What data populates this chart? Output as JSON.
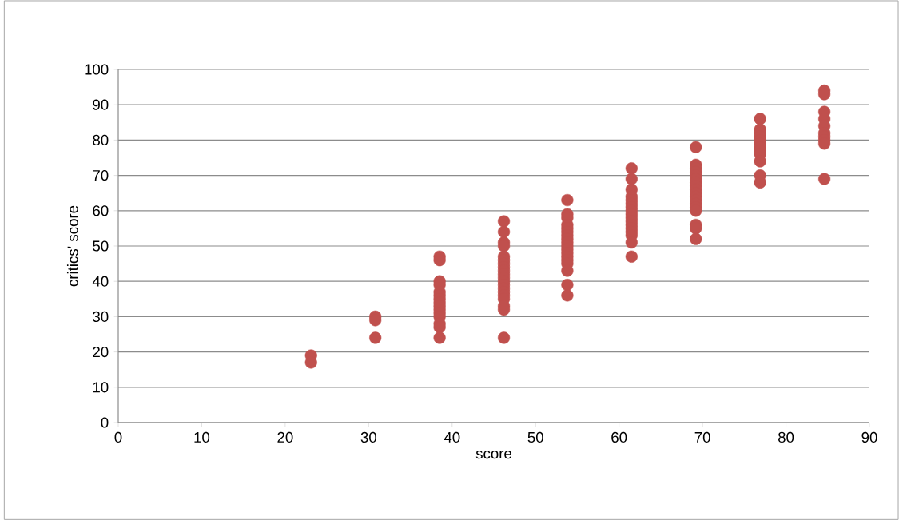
{
  "chart_data": {
    "type": "scatter",
    "xlabel": "score",
    "ylabel": "critics' score",
    "x": [
      23.1,
      23.1,
      30.8,
      30.8,
      30.8,
      38.5,
      38.5,
      38.5,
      38.5,
      38.5,
      38.5,
      38.5,
      38.5,
      38.5,
      38.5,
      38.5,
      38.5,
      38.5,
      38.5,
      38.5,
      46.2,
      46.2,
      46.2,
      46.2,
      46.2,
      46.2,
      46.2,
      46.2,
      46.2,
      46.2,
      46.2,
      46.2,
      46.2,
      46.2,
      46.2,
      46.2,
      46.2,
      46.2,
      46.2,
      46.2,
      53.8,
      53.8,
      53.8,
      53.8,
      53.8,
      53.8,
      53.8,
      53.8,
      53.8,
      53.8,
      53.8,
      53.8,
      53.8,
      53.8,
      53.8,
      53.8,
      53.8,
      53.8,
      61.5,
      61.5,
      61.5,
      61.5,
      61.5,
      61.5,
      61.5,
      61.5,
      61.5,
      61.5,
      61.5,
      61.5,
      61.5,
      61.5,
      61.5,
      61.5,
      61.5,
      69.2,
      69.2,
      69.2,
      69.2,
      69.2,
      69.2,
      69.2,
      69.2,
      69.2,
      69.2,
      69.2,
      69.2,
      69.2,
      69.2,
      69.2,
      69.2,
      69.2,
      69.2,
      76.9,
      76.9,
      76.9,
      76.9,
      76.9,
      76.9,
      76.9,
      76.9,
      76.9,
      76.9,
      76.9,
      76.9,
      84.6,
      84.6,
      84.6,
      84.6,
      84.6,
      84.6,
      84.6,
      84.6,
      84.6,
      84.6
    ],
    "values": [
      19,
      17,
      30,
      29,
      24,
      47,
      46,
      40,
      39,
      37,
      36,
      35,
      34,
      33,
      32,
      31,
      30,
      28,
      27,
      24,
      57,
      54,
      51,
      50,
      47,
      46,
      45,
      44,
      43,
      42,
      41,
      40,
      39,
      38,
      37,
      36,
      35,
      33,
      32,
      24,
      63,
      59,
      58,
      56,
      55,
      54,
      53,
      52,
      51,
      50,
      49,
      48,
      47,
      46,
      45,
      43,
      39,
      36,
      72,
      69,
      66,
      64,
      63,
      62,
      61,
      60,
      59,
      58,
      57,
      56,
      55,
      54,
      53,
      51,
      47,
      78,
      73,
      72,
      71,
      70,
      69,
      68,
      67,
      66,
      65,
      64,
      63,
      62,
      61,
      60,
      56,
      55,
      52,
      86,
      83,
      82,
      81,
      80,
      79,
      78,
      77,
      76,
      74,
      70,
      68,
      94,
      93,
      88,
      86,
      84,
      82,
      81,
      80,
      79,
      69
    ],
    "color": "#c0504d",
    "marker": "circle",
    "grid": "y",
    "xlim": [
      0,
      90
    ],
    "ylim": [
      0,
      100
    ],
    "xticks": [
      0,
      10,
      20,
      30,
      40,
      50,
      60,
      70,
      80,
      90
    ],
    "yticks": [
      0,
      10,
      20,
      30,
      40,
      50,
      60,
      70,
      80,
      90,
      100
    ]
  }
}
